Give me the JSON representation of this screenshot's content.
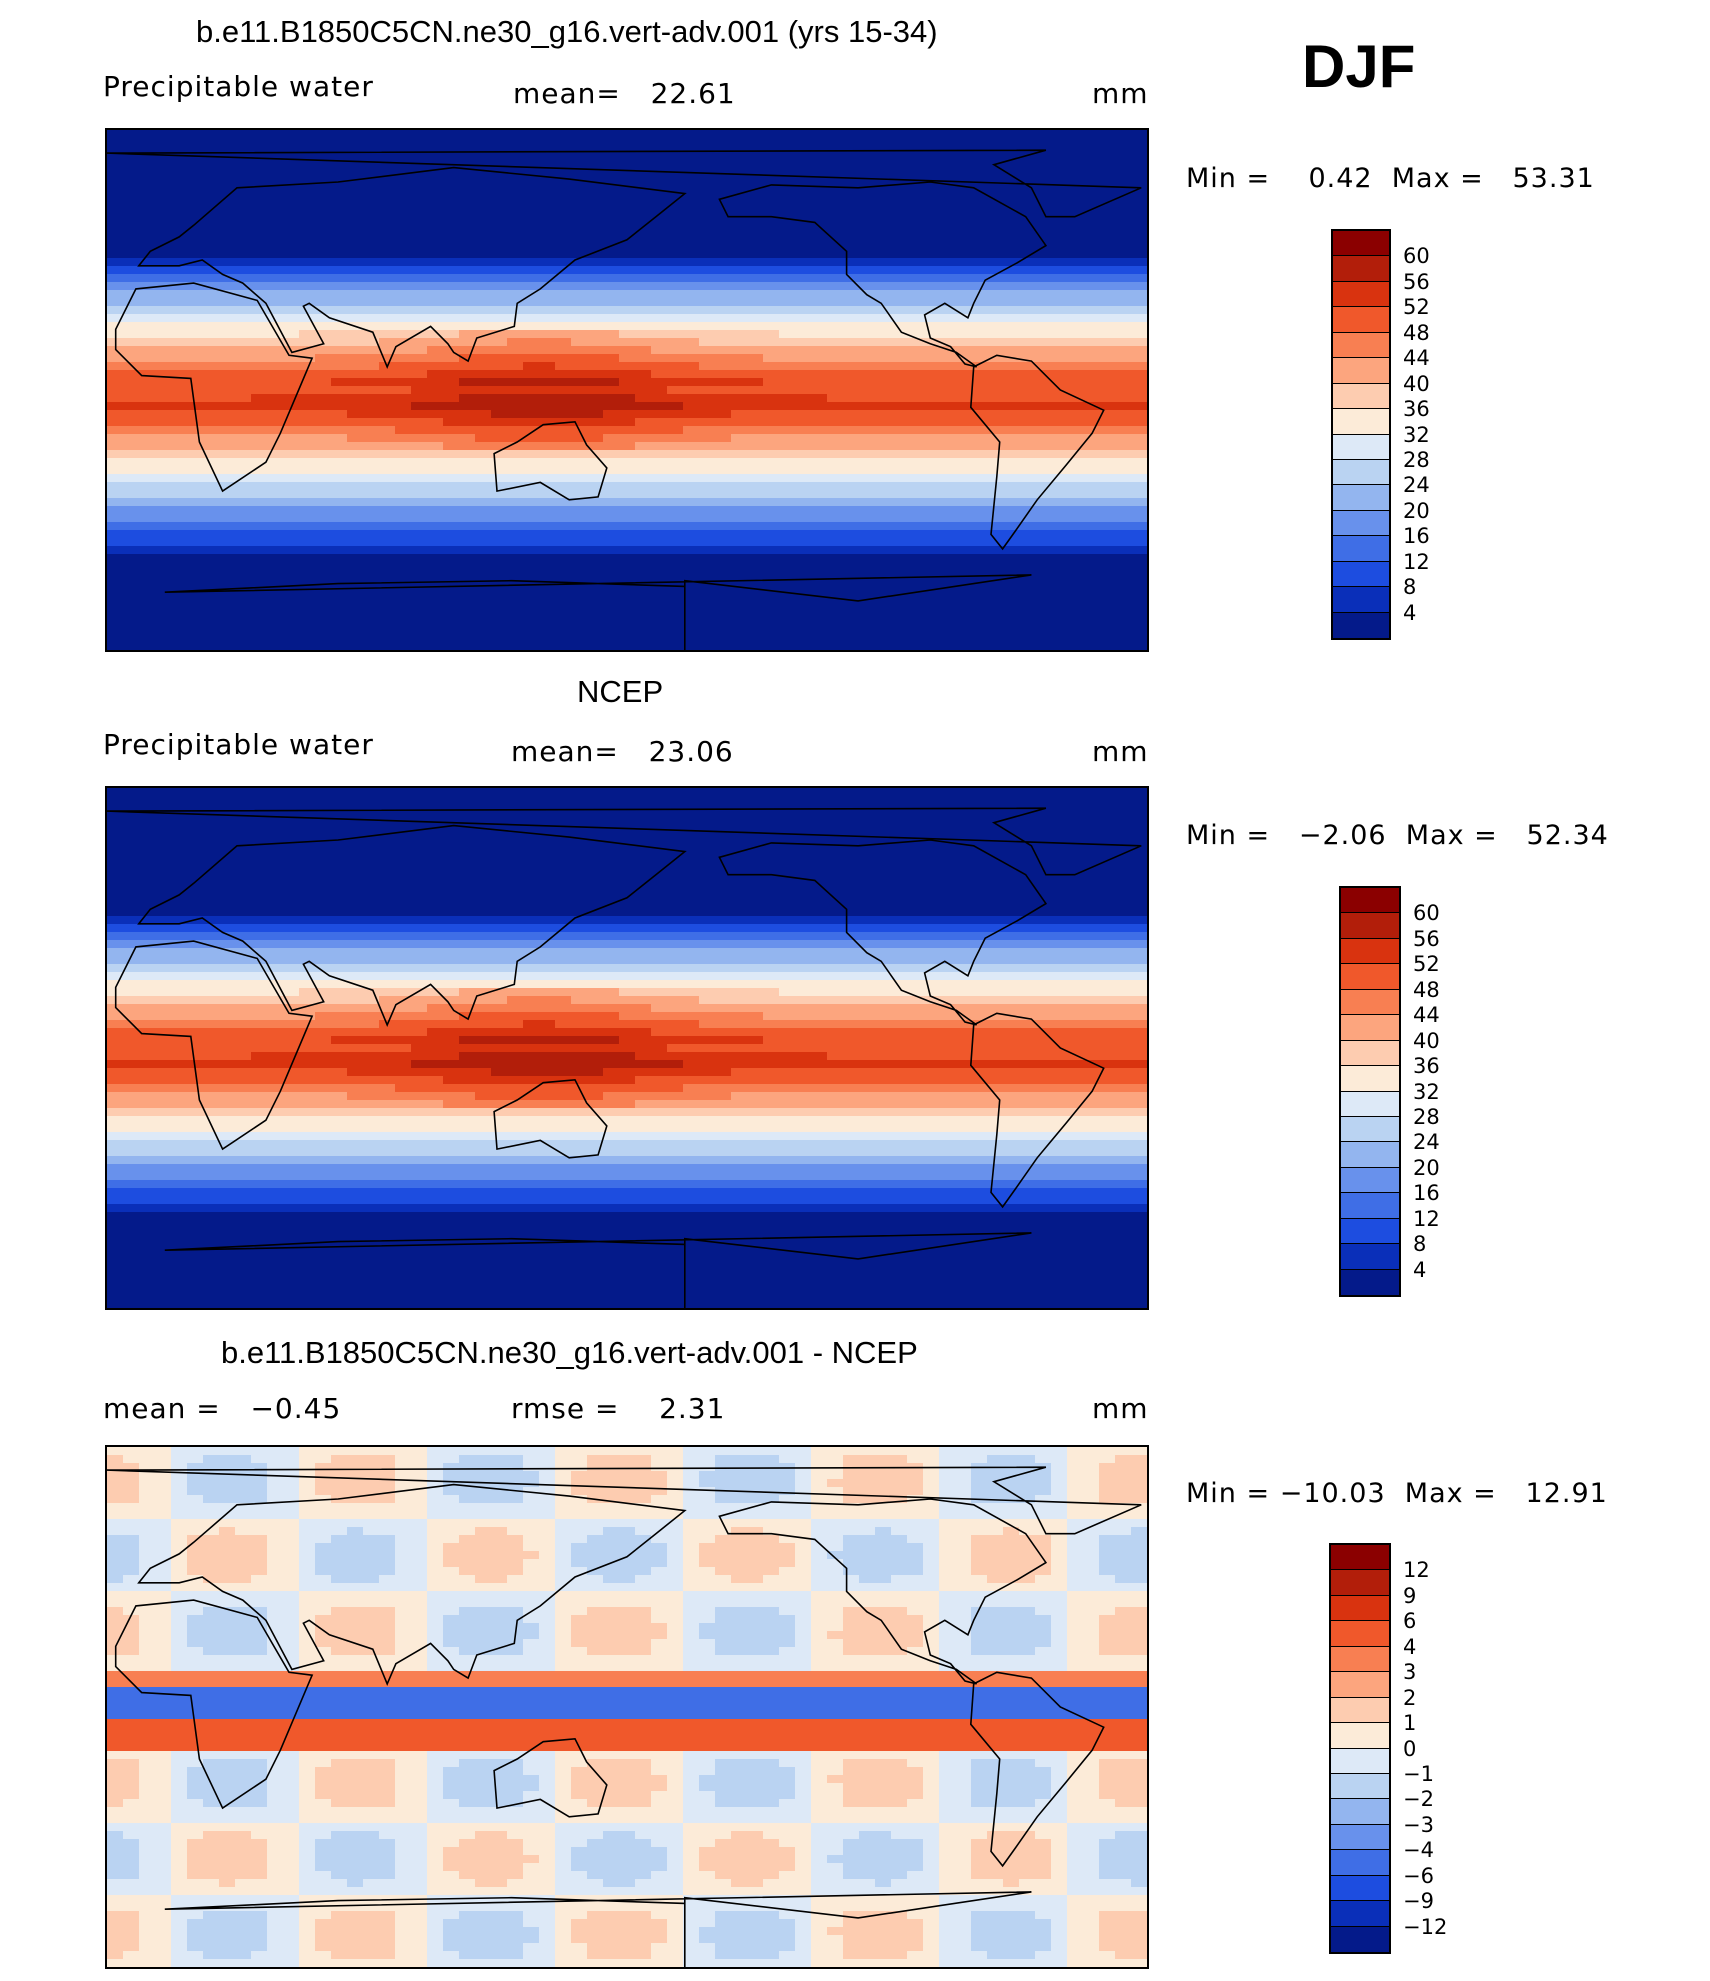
{
  "figure": {
    "season": "DJF"
  },
  "panels": [
    {
      "title": "b.e11.B1850C5CN.ne30_g16.vert-adv.001 (yrs 15-34)",
      "variable": "Precipitable water",
      "stat": "mean=   22.61",
      "units": "mm",
      "minmax": "Min =    0.42  Max =   53.31",
      "colors": [
        "#8b0000",
        "#b21e0a",
        "#d9330f",
        "#f0582b",
        "#f87f52",
        "#fca57e",
        "#fdccb0",
        "#fcebd8",
        "#dde9f7",
        "#bad3f2",
        "#93b5ef",
        "#6891ec",
        "#3f6ee6",
        "#1d4de0",
        "#0a2fb9",
        "#041a8a"
      ],
      "labels": [
        "60",
        "56",
        "52",
        "48",
        "44",
        "40",
        "36",
        "32",
        "28",
        "24",
        "20",
        "16",
        "12",
        "8",
        "4"
      ],
      "field_type": "mean_model"
    },
    {
      "title": "NCEP",
      "variable": "Precipitable water",
      "stat": "mean=   23.06",
      "units": "mm",
      "minmax": "Min =   −2.06  Max =   52.34",
      "colors": [
        "#8b0000",
        "#b21e0a",
        "#d9330f",
        "#f0582b",
        "#f87f52",
        "#fca57e",
        "#fdccb0",
        "#fcebd8",
        "#dde9f7",
        "#bad3f2",
        "#93b5ef",
        "#6891ec",
        "#3f6ee6",
        "#1d4de0",
        "#0a2fb9",
        "#041a8a"
      ],
      "labels": [
        "60",
        "56",
        "52",
        "48",
        "44",
        "40",
        "36",
        "32",
        "28",
        "24",
        "20",
        "16",
        "12",
        "8",
        "4"
      ],
      "field_type": "mean_obs"
    },
    {
      "title": "b.e11.B1850C5CN.ne30_g16.vert-adv.001 - NCEP",
      "variable": "mean =   −0.45",
      "stat": "rmse =    2.31",
      "units": "mm",
      "minmax": "Min = −10.03  Max =   12.91",
      "colors": [
        "#8b0000",
        "#b21e0a",
        "#d9330f",
        "#f0582b",
        "#f87f52",
        "#fca57e",
        "#fdccb0",
        "#fcebd8",
        "#dde9f7",
        "#bad3f2",
        "#93b5ef",
        "#6891ec",
        "#3f6ee6",
        "#1d4de0",
        "#0a2fb9",
        "#041a8a"
      ],
      "labels": [
        "12",
        "9",
        "6",
        "4",
        "3",
        "2",
        "1",
        "0",
        "−1",
        "−2",
        "−3",
        "−4",
        "−6",
        "−9",
        "−12"
      ],
      "field_type": "diff"
    }
  ]
}
